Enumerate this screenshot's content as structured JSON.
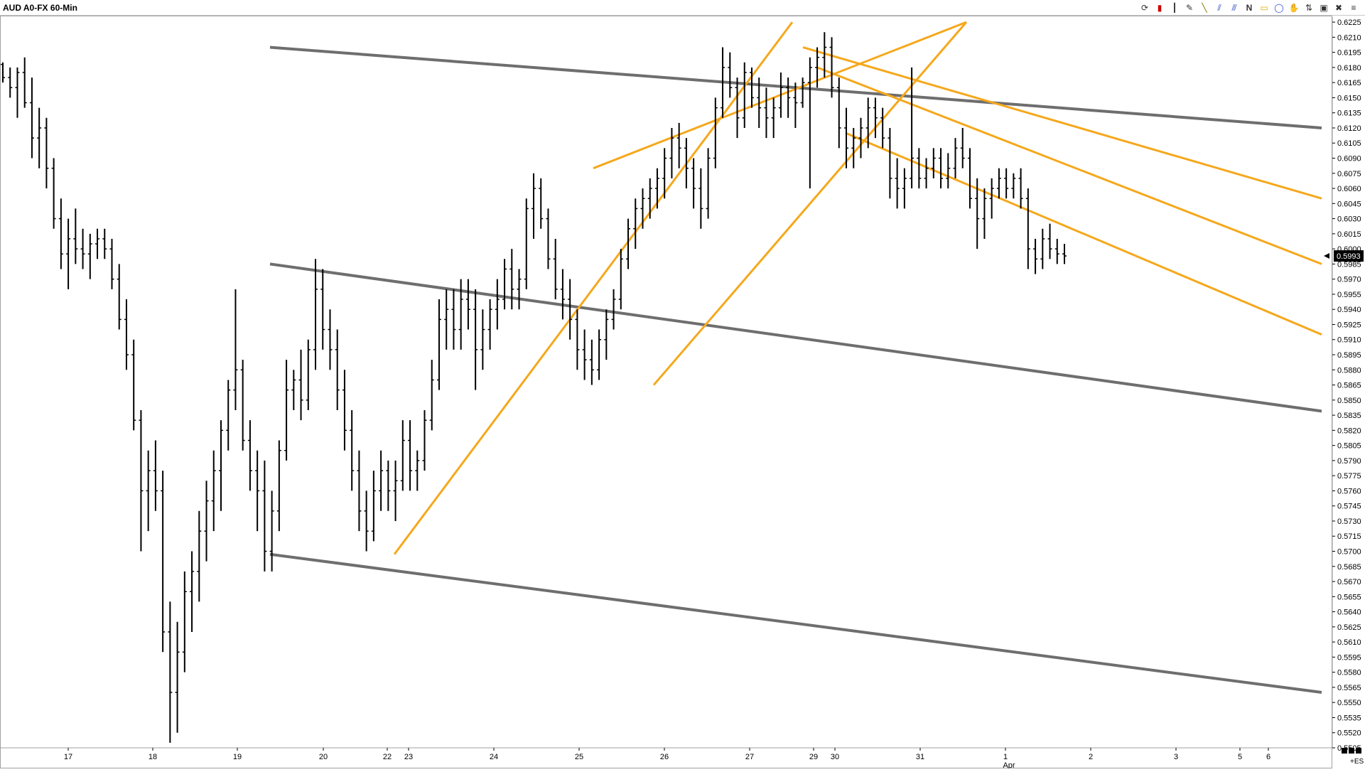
{
  "title": "AUD A0-FX 60-Min",
  "toolbar": [
    "refresh-icon",
    "candle-icon",
    "bar-chart-icon",
    "pen-icon",
    "line-icon",
    "channel-icon",
    "pitchfork-icon",
    "text-icon",
    "circle-icon",
    "hand-icon",
    "up-down-icon",
    "lock-icon",
    "trash-icon",
    "menu-icon"
  ],
  "toolbar_text": {
    "N": "N"
  },
  "corner_label": "+ES",
  "last_price_label": "0.5993",
  "chart_data": {
    "type": "bar",
    "subtype": "ohlc-price-chart",
    "y_scale": {
      "min": 0.5505,
      "max": 0.623,
      "tick_step": 0.0015
    },
    "y_ticks": [
      "0.6225",
      "0.6210",
      "0.6195",
      "0.6180",
      "0.6165",
      "0.6150",
      "0.6135",
      "0.6120",
      "0.6105",
      "0.6090",
      "0.6075",
      "0.6060",
      "0.6045",
      "0.6030",
      "0.6015",
      "0.6000",
      "0.5985",
      "0.5970",
      "0.5955",
      "0.5940",
      "0.5925",
      "0.5910",
      "0.5895",
      "0.5880",
      "0.5865",
      "0.5850",
      "0.5835",
      "0.5820",
      "0.5805",
      "0.5790",
      "0.5775",
      "0.5760",
      "0.5745",
      "0.5730",
      "0.5715",
      "0.5700",
      "0.5685",
      "0.5670",
      "0.5655",
      "0.5640",
      "0.5625",
      "0.5610",
      "0.5595",
      "0.5580",
      "0.5565",
      "0.5550",
      "0.5535",
      "0.5520",
      "0.5505"
    ],
    "x_ticks": [
      "17",
      "18",
      "19",
      "20",
      "22",
      "23",
      "24",
      "25",
      "26",
      "27",
      "29",
      "30",
      "31",
      "1",
      "2",
      "3",
      "5",
      "6"
    ],
    "x_subticks": [
      {
        "at": "1",
        "label": "Apr"
      }
    ],
    "last_price": 0.5993,
    "colors": {
      "bars": "#000000",
      "gray_lines": "#6e6e6e",
      "orange_lines": "#f5a81c"
    },
    "ohlc": [
      [
        0.6183,
        0.6185,
        0.6165,
        0.617
      ],
      [
        0.617,
        0.618,
        0.615,
        0.616
      ],
      [
        0.616,
        0.618,
        0.613,
        0.6175
      ],
      [
        0.6175,
        0.619,
        0.614,
        0.6145
      ],
      [
        0.6145,
        0.617,
        0.609,
        0.611
      ],
      [
        0.611,
        0.614,
        0.608,
        0.612
      ],
      [
        0.612,
        0.613,
        0.606,
        0.608
      ],
      [
        0.608,
        0.609,
        0.602,
        0.603
      ],
      [
        0.603,
        0.605,
        0.598,
        0.5995
      ],
      [
        0.5995,
        0.603,
        0.596,
        0.601
      ],
      [
        0.601,
        0.604,
        0.5985,
        0.6
      ],
      [
        0.6,
        0.602,
        0.598,
        0.5995
      ],
      [
        0.5995,
        0.6015,
        0.597,
        0.6005
      ],
      [
        0.6005,
        0.602,
        0.599,
        0.601
      ],
      [
        0.601,
        0.602,
        0.599,
        0.6
      ],
      [
        0.6,
        0.601,
        0.596,
        0.597
      ],
      [
        0.597,
        0.5985,
        0.592,
        0.593
      ],
      [
        0.593,
        0.595,
        0.588,
        0.5895
      ],
      [
        0.5895,
        0.591,
        0.582,
        0.583
      ],
      [
        0.583,
        0.584,
        0.57,
        0.576
      ],
      [
        0.576,
        0.58,
        0.572,
        0.578
      ],
      [
        0.578,
        0.581,
        0.574,
        0.576
      ],
      [
        0.576,
        0.578,
        0.56,
        0.562
      ],
      [
        0.562,
        0.565,
        0.551,
        0.556
      ],
      [
        0.556,
        0.563,
        0.552,
        0.56
      ],
      [
        0.56,
        0.568,
        0.558,
        0.566
      ],
      [
        0.566,
        0.57,
        0.562,
        0.568
      ],
      [
        0.568,
        0.574,
        0.565,
        0.572
      ],
      [
        0.572,
        0.577,
        0.569,
        0.575
      ],
      [
        0.575,
        0.58,
        0.572,
        0.578
      ],
      [
        0.578,
        0.583,
        0.574,
        0.582
      ],
      [
        0.582,
        0.587,
        0.58,
        0.586
      ],
      [
        0.586,
        0.596,
        0.584,
        0.588
      ],
      [
        0.588,
        0.589,
        0.58,
        0.581
      ],
      [
        0.581,
        0.583,
        0.576,
        0.578
      ],
      [
        0.578,
        0.58,
        0.572,
        0.576
      ],
      [
        0.576,
        0.579,
        0.568,
        0.57
      ],
      [
        0.57,
        0.576,
        0.568,
        0.574
      ],
      [
        0.574,
        0.581,
        0.572,
        0.58
      ],
      [
        0.58,
        0.589,
        0.579,
        0.586
      ],
      [
        0.586,
        0.588,
        0.584,
        0.587
      ],
      [
        0.587,
        0.59,
        0.583,
        0.585
      ],
      [
        0.585,
        0.591,
        0.584,
        0.59
      ],
      [
        0.59,
        0.599,
        0.588,
        0.596
      ],
      [
        0.596,
        0.598,
        0.59,
        0.592
      ],
      [
        0.592,
        0.594,
        0.588,
        0.59
      ],
      [
        0.59,
        0.592,
        0.584,
        0.586
      ],
      [
        0.586,
        0.588,
        0.58,
        0.582
      ],
      [
        0.582,
        0.584,
        0.576,
        0.578
      ],
      [
        0.578,
        0.58,
        0.572,
        0.574
      ],
      [
        0.574,
        0.576,
        0.57,
        0.572
      ],
      [
        0.572,
        0.578,
        0.571,
        0.576
      ],
      [
        0.576,
        0.58,
        0.574,
        0.578
      ],
      [
        0.578,
        0.579,
        0.574,
        0.576
      ],
      [
        0.576,
        0.579,
        0.573,
        0.577
      ],
      [
        0.577,
        0.583,
        0.576,
        0.581
      ],
      [
        0.581,
        0.583,
        0.576,
        0.578
      ],
      [
        0.578,
        0.58,
        0.576,
        0.579
      ],
      [
        0.579,
        0.584,
        0.578,
        0.583
      ],
      [
        0.583,
        0.589,
        0.582,
        0.587
      ],
      [
        0.587,
        0.595,
        0.586,
        0.593
      ],
      [
        0.593,
        0.596,
        0.59,
        0.594
      ],
      [
        0.594,
        0.596,
        0.59,
        0.592
      ],
      [
        0.592,
        0.597,
        0.59,
        0.595
      ],
      [
        0.595,
        0.597,
        0.592,
        0.594
      ],
      [
        0.594,
        0.596,
        0.586,
        0.59
      ],
      [
        0.59,
        0.594,
        0.588,
        0.592
      ],
      [
        0.592,
        0.595,
        0.59,
        0.594
      ],
      [
        0.594,
        0.597,
        0.592,
        0.595
      ],
      [
        0.595,
        0.599,
        0.594,
        0.598
      ],
      [
        0.598,
        0.6,
        0.594,
        0.596
      ],
      [
        0.596,
        0.598,
        0.594,
        0.597
      ],
      [
        0.597,
        0.605,
        0.596,
        0.604
      ],
      [
        0.604,
        0.6075,
        0.601,
        0.606
      ],
      [
        0.606,
        0.607,
        0.602,
        0.603
      ],
      [
        0.603,
        0.604,
        0.598,
        0.599
      ],
      [
        0.599,
        0.601,
        0.595,
        0.596
      ],
      [
        0.596,
        0.598,
        0.593,
        0.595
      ],
      [
        0.595,
        0.597,
        0.591,
        0.593
      ],
      [
        0.593,
        0.594,
        0.588,
        0.59
      ],
      [
        0.59,
        0.592,
        0.587,
        0.589
      ],
      [
        0.589,
        0.591,
        0.5865,
        0.588
      ],
      [
        0.588,
        0.592,
        0.587,
        0.591
      ],
      [
        0.591,
        0.594,
        0.589,
        0.593
      ],
      [
        0.593,
        0.596,
        0.592,
        0.595
      ],
      [
        0.595,
        0.6,
        0.594,
        0.599
      ],
      [
        0.599,
        0.603,
        0.598,
        0.602
      ],
      [
        0.602,
        0.605,
        0.6,
        0.604
      ],
      [
        0.604,
        0.606,
        0.602,
        0.605
      ],
      [
        0.605,
        0.607,
        0.603,
        0.606
      ],
      [
        0.606,
        0.608,
        0.604,
        0.607
      ],
      [
        0.607,
        0.61,
        0.605,
        0.609
      ],
      [
        0.609,
        0.612,
        0.607,
        0.611
      ],
      [
        0.611,
        0.6125,
        0.608,
        0.61
      ],
      [
        0.61,
        0.611,
        0.606,
        0.608
      ],
      [
        0.608,
        0.609,
        0.604,
        0.606
      ],
      [
        0.606,
        0.608,
        0.602,
        0.604
      ],
      [
        0.604,
        0.61,
        0.603,
        0.609
      ],
      [
        0.609,
        0.615,
        0.608,
        0.614
      ],
      [
        0.614,
        0.62,
        0.613,
        0.618
      ],
      [
        0.618,
        0.6195,
        0.615,
        0.616
      ],
      [
        0.616,
        0.617,
        0.611,
        0.613
      ],
      [
        0.613,
        0.6185,
        0.612,
        0.6175
      ],
      [
        0.6175,
        0.618,
        0.614,
        0.615
      ],
      [
        0.615,
        0.617,
        0.612,
        0.614
      ],
      [
        0.614,
        0.616,
        0.611,
        0.613
      ],
      [
        0.613,
        0.615,
        0.611,
        0.614
      ],
      [
        0.614,
        0.6175,
        0.613,
        0.616
      ],
      [
        0.616,
        0.617,
        0.613,
        0.615
      ],
      [
        0.615,
        0.6165,
        0.612,
        0.6145
      ],
      [
        0.6145,
        0.617,
        0.614,
        0.6165
      ],
      [
        0.6165,
        0.619,
        0.606,
        0.618
      ],
      [
        0.618,
        0.62,
        0.616,
        0.619
      ],
      [
        0.619,
        0.6215,
        0.617,
        0.62
      ],
      [
        0.62,
        0.621,
        0.615,
        0.616
      ],
      [
        0.616,
        0.617,
        0.61,
        0.612
      ],
      [
        0.612,
        0.614,
        0.608,
        0.61
      ],
      [
        0.61,
        0.612,
        0.608,
        0.611
      ],
      [
        0.611,
        0.613,
        0.609,
        0.612
      ],
      [
        0.612,
        0.615,
        0.61,
        0.614
      ],
      [
        0.614,
        0.615,
        0.611,
        0.613
      ],
      [
        0.613,
        0.614,
        0.61,
        0.611
      ],
      [
        0.611,
        0.612,
        0.605,
        0.607
      ],
      [
        0.607,
        0.609,
        0.604,
        0.606
      ],
      [
        0.606,
        0.608,
        0.604,
        0.607
      ],
      [
        0.607,
        0.618,
        0.606,
        0.609
      ],
      [
        0.609,
        0.61,
        0.606,
        0.607
      ],
      [
        0.607,
        0.609,
        0.606,
        0.608
      ],
      [
        0.608,
        0.61,
        0.607,
        0.609
      ],
      [
        0.609,
        0.61,
        0.606,
        0.607
      ],
      [
        0.607,
        0.6095,
        0.606,
        0.608
      ],
      [
        0.608,
        0.611,
        0.607,
        0.61
      ],
      [
        0.61,
        0.612,
        0.608,
        0.609
      ],
      [
        0.609,
        0.61,
        0.604,
        0.605
      ],
      [
        0.605,
        0.607,
        0.6,
        0.603
      ],
      [
        0.603,
        0.606,
        0.601,
        0.605
      ],
      [
        0.605,
        0.607,
        0.603,
        0.606
      ],
      [
        0.606,
        0.608,
        0.605,
        0.607
      ],
      [
        0.607,
        0.608,
        0.605,
        0.606
      ],
      [
        0.606,
        0.6075,
        0.605,
        0.607
      ],
      [
        0.607,
        0.608,
        0.604,
        0.605
      ],
      [
        0.605,
        0.606,
        0.598,
        0.6
      ],
      [
        0.6,
        0.601,
        0.5975,
        0.599
      ],
      [
        0.599,
        0.602,
        0.598,
        0.601
      ],
      [
        0.601,
        0.6025,
        0.599,
        0.6
      ],
      [
        0.6,
        0.601,
        0.5985,
        0.5995
      ],
      [
        0.5995,
        0.6005,
        0.5985,
        0.5993
      ]
    ],
    "gray_lines": [
      {
        "points": [
          [
            0,
            0.62
          ],
          [
            1,
            0.612
          ]
        ]
      },
      {
        "points": [
          [
            0,
            0.5985
          ],
          [
            1,
            0.5839
          ]
        ]
      },
      {
        "points": [
          [
            0,
            0.5697
          ],
          [
            1,
            0.556
          ]
        ]
      }
    ],
    "orange_lines": [
      {
        "points": [
          [
            0,
            0.5697
          ],
          [
            1,
            0.6225
          ]
        ]
      },
      {
        "points": [
          [
            0,
            0.608
          ],
          [
            1,
            0.6225
          ]
        ]
      },
      {
        "points": [
          [
            0,
            0.5865
          ],
          [
            1,
            0.6225
          ]
        ]
      },
      {
        "points": [
          [
            0,
            0.62
          ],
          [
            1,
            0.605
          ]
        ]
      },
      {
        "points": [
          [
            0,
            0.618
          ],
          [
            1,
            0.5985
          ]
        ]
      },
      {
        "points": [
          [
            0,
            0.6115
          ],
          [
            1,
            0.5915
          ]
        ]
      }
    ]
  }
}
